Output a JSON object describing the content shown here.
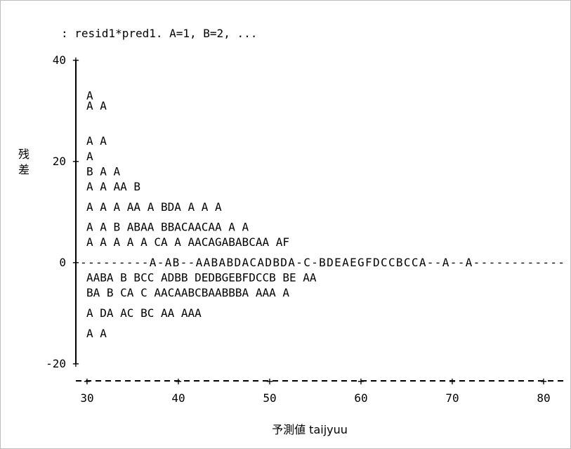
{
  "chart_data": {
    "type": "scatter",
    "title": ": resid1*pred1.  A=1, B=2, ...",
    "xlabel": "予測値 taijyuu",
    "ylabel": "残差",
    "xlim": [
      30,
      80
    ],
    "ylim": [
      -20,
      40
    ],
    "x_ticks": [
      "30",
      "40",
      "50",
      "60",
      "70",
      "80"
    ],
    "y_ticks": [
      "40",
      "20",
      "0",
      "-20"
    ],
    "zero_line": "-",
    "rows": [
      {
        "y": 33,
        "text": "                                                         A"
      },
      {
        "y": 31,
        "text": "                                               A        A"
      },
      {
        "y": 24,
        "text": "                                          A        A"
      },
      {
        "y": 21,
        "text": "                                                            A"
      },
      {
        "y": 18,
        "text": "                                            B A    A"
      },
      {
        "y": 15,
        "text": "                             A             A   AA B"
      },
      {
        "y": 11,
        "text": "                          A     A  A  AA    A BDA A  A       A"
      },
      {
        "y": 7,
        "text": "                        A     A  B ABAA  BBACAACAA   A  A"
      },
      {
        "y": 4,
        "text": "                   A A  A A A  CA   A AACAGABABCAA AF"
      },
      {
        "y": 0,
        "text": "---------A-AB--AABABDACADBDA-C-BDEAEGFDCCBCCA--A--A------------"
      },
      {
        "y": -3,
        "text": "                AABA B BCC ADBB DEDBGEBFDCCB BE    AA"
      },
      {
        "y": -6,
        "text": "                      BA  B CA C AACAABCBAABBBA AAA A"
      },
      {
        "y": -10,
        "text": "                 A               DA  AC BC AA   AAA"
      },
      {
        "y": -14,
        "text": "                                       A     A"
      }
    ]
  }
}
